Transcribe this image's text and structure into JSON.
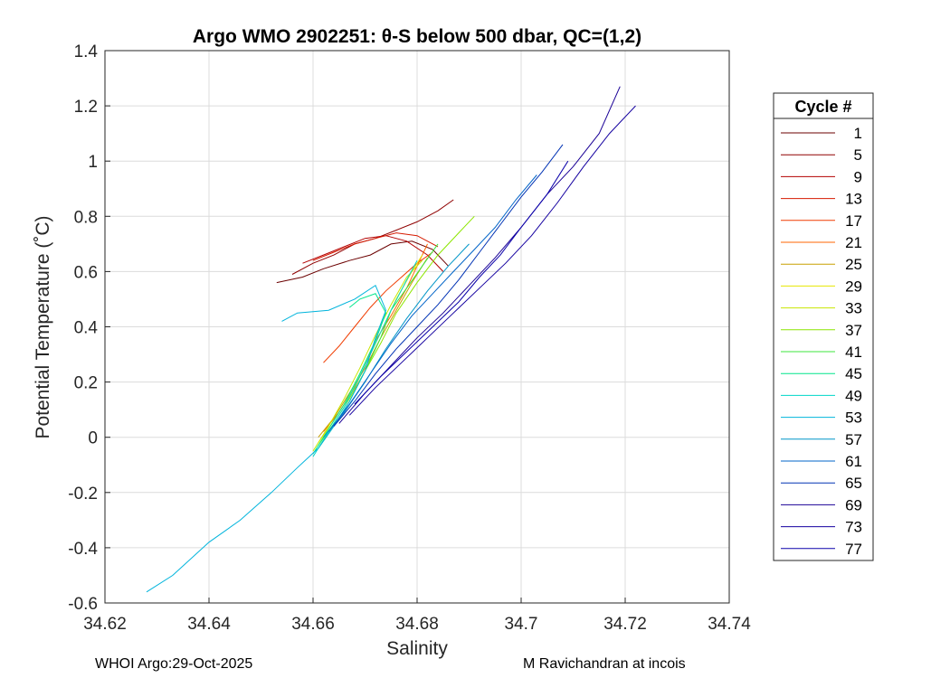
{
  "chart_data": {
    "type": "line",
    "title": "Argo WMO 2902251: θ-S below 500 dbar,  QC=(1,2)",
    "xlabel": "Salinity",
    "ylabel": "Potential Temperature (˚C)",
    "xlim": [
      34.62,
      34.74
    ],
    "ylim": [
      -0.6,
      1.4
    ],
    "xticks": [
      "34.62",
      "34.64",
      "34.66",
      "34.68",
      "34.7",
      "34.72",
      "34.74"
    ],
    "yticks": [
      "-0.6",
      "-0.4",
      "-0.2",
      "0",
      "0.2",
      "0.4",
      "0.6",
      "0.8",
      "1",
      "1.2",
      "1.4"
    ],
    "grid": true,
    "legend_title": "Cycle #",
    "legend_position": "right outside",
    "series": [
      {
        "name": "1",
        "color": "#6b0000",
        "x": [
          34.653,
          34.658,
          34.662,
          34.667,
          34.671,
          34.675,
          34.679,
          34.683,
          34.686
        ],
        "y": [
          0.56,
          0.58,
          0.61,
          0.64,
          0.66,
          0.7,
          0.71,
          0.68,
          0.62
        ]
      },
      {
        "name": "5",
        "color": "#8f0000",
        "x": [
          34.656,
          34.66,
          34.664,
          34.668,
          34.672,
          34.676,
          34.68,
          34.684,
          34.687
        ],
        "y": [
          0.59,
          0.63,
          0.66,
          0.7,
          0.72,
          0.75,
          0.78,
          0.82,
          0.86
        ]
      },
      {
        "name": "9",
        "color": "#b30000",
        "x": [
          34.658,
          34.662,
          34.666,
          34.67,
          34.674,
          34.678,
          34.682,
          34.685
        ],
        "y": [
          0.63,
          0.66,
          0.69,
          0.72,
          0.73,
          0.71,
          0.66,
          0.6
        ]
      },
      {
        "name": "13",
        "color": "#d61a00",
        "x": [
          34.66,
          34.664,
          34.668,
          34.672,
          34.676,
          34.68,
          34.684
        ],
        "y": [
          0.64,
          0.67,
          0.7,
          0.72,
          0.74,
          0.73,
          0.69
        ]
      },
      {
        "name": "17",
        "color": "#f03c00",
        "x": [
          34.662,
          34.665,
          34.668,
          34.671,
          34.674,
          34.677,
          34.68,
          34.683
        ],
        "y": [
          0.27,
          0.33,
          0.4,
          0.47,
          0.53,
          0.58,
          0.63,
          0.67
        ]
      },
      {
        "name": "21",
        "color": "#ff6600",
        "x": [
          34.662,
          34.665,
          34.668,
          34.67,
          34.672,
          34.675,
          34.678,
          34.68,
          34.682
        ],
        "y": [
          0.02,
          0.09,
          0.18,
          0.26,
          0.35,
          0.44,
          0.54,
          0.62,
          0.7
        ]
      },
      {
        "name": "25",
        "color": "#c8a000",
        "x": [
          34.661,
          34.664,
          34.667,
          34.67,
          34.673,
          34.676,
          34.679,
          34.682
        ],
        "y": [
          0.0,
          0.07,
          0.16,
          0.25,
          0.36,
          0.46,
          0.56,
          0.65
        ]
      },
      {
        "name": "29",
        "color": "#e6e600",
        "x": [
          34.661,
          34.664,
          34.667,
          34.67,
          34.673,
          34.676,
          34.679,
          34.681
        ],
        "y": [
          -0.02,
          0.06,
          0.15,
          0.26,
          0.38,
          0.5,
          0.6,
          0.66
        ]
      },
      {
        "name": "33",
        "color": "#c8e600",
        "x": [
          34.66,
          34.663,
          34.666,
          34.669,
          34.672,
          34.675,
          34.678,
          34.681
        ],
        "y": [
          -0.05,
          0.04,
          0.14,
          0.25,
          0.37,
          0.48,
          0.58,
          0.64
        ]
      },
      {
        "name": "37",
        "color": "#8ce600",
        "x": [
          34.661,
          34.664,
          34.667,
          34.67,
          34.673,
          34.676,
          34.68,
          34.684,
          34.688,
          34.691
        ],
        "y": [
          -0.03,
          0.05,
          0.14,
          0.24,
          0.34,
          0.45,
          0.56,
          0.66,
          0.74,
          0.8
        ]
      },
      {
        "name": "41",
        "color": "#3ce63c",
        "x": [
          34.661,
          34.664,
          34.667,
          34.67,
          34.673,
          34.675,
          34.678,
          34.681,
          34.684
        ],
        "y": [
          -0.04,
          0.04,
          0.13,
          0.24,
          0.36,
          0.46,
          0.54,
          0.62,
          0.7
        ]
      },
      {
        "name": "45",
        "color": "#00e68c",
        "x": [
          34.66,
          34.663,
          34.666,
          34.669,
          34.672,
          34.674,
          34.672,
          34.669,
          34.667
        ],
        "y": [
          -0.06,
          0.03,
          0.12,
          0.23,
          0.35,
          0.45,
          0.52,
          0.5,
          0.47
        ]
      },
      {
        "name": "49",
        "color": "#00d6c8",
        "x": [
          34.66,
          34.663,
          34.666,
          34.669,
          34.672,
          34.675,
          34.678,
          34.68
        ],
        "y": [
          -0.07,
          0.02,
          0.11,
          0.22,
          0.34,
          0.46,
          0.57,
          0.64
        ]
      },
      {
        "name": "53",
        "color": "#00b4dc",
        "x": [
          34.628,
          34.633,
          34.64,
          34.646,
          34.652,
          34.657,
          34.661,
          34.664,
          34.667,
          34.67,
          34.672,
          34.674,
          34.672,
          34.668,
          34.663,
          34.657,
          34.654
        ],
        "y": [
          -0.56,
          -0.5,
          -0.38,
          -0.3,
          -0.2,
          -0.11,
          -0.04,
          0.04,
          0.13,
          0.24,
          0.36,
          0.46,
          0.55,
          0.5,
          0.46,
          0.45,
          0.42
        ]
      },
      {
        "name": "57",
        "color": "#0096c8",
        "x": [
          34.662,
          34.666,
          34.67,
          34.674,
          34.678,
          34.682,
          34.686,
          34.69
        ],
        "y": [
          0.0,
          0.09,
          0.2,
          0.32,
          0.43,
          0.53,
          0.62,
          0.7
        ]
      },
      {
        "name": "61",
        "color": "#0064c8",
        "x": [
          34.663,
          34.667,
          34.671,
          34.675,
          34.679,
          34.683,
          34.687,
          34.691,
          34.695,
          34.699,
          34.703
        ],
        "y": [
          0.02,
          0.12,
          0.23,
          0.34,
          0.44,
          0.52,
          0.6,
          0.68,
          0.76,
          0.86,
          0.95
        ]
      },
      {
        "name": "65",
        "color": "#0032b4",
        "x": [
          34.664,
          34.668,
          34.672,
          34.676,
          34.68,
          34.684,
          34.688,
          34.692,
          34.696,
          34.7,
          34.704,
          34.708
        ],
        "y": [
          0.04,
          0.13,
          0.23,
          0.32,
          0.4,
          0.48,
          0.57,
          0.67,
          0.77,
          0.87,
          0.96,
          1.06
        ]
      },
      {
        "name": "69",
        "color": "#1a0096",
        "x": [
          34.665,
          34.67,
          34.675,
          34.68,
          34.685,
          34.69,
          34.695,
          34.7,
          34.705,
          34.71,
          34.715,
          34.719
        ],
        "y": [
          0.05,
          0.16,
          0.26,
          0.36,
          0.45,
          0.55,
          0.65,
          0.76,
          0.88,
          0.98,
          1.1,
          1.27
        ]
      },
      {
        "name": "73",
        "color": "#1400a0",
        "x": [
          34.667,
          34.672,
          34.677,
          34.682,
          34.687,
          34.692,
          34.697,
          34.702,
          34.707,
          34.712,
          34.717,
          34.722
        ],
        "y": [
          0.08,
          0.18,
          0.27,
          0.36,
          0.45,
          0.54,
          0.63,
          0.73,
          0.85,
          0.98,
          1.1,
          1.2
        ]
      },
      {
        "name": "77",
        "color": "#0a00aa",
        "x": [
          34.668,
          34.673,
          34.678,
          34.683,
          34.688,
          34.692,
          34.696,
          34.7,
          34.705,
          34.709
        ],
        "y": [
          0.12,
          0.22,
          0.31,
          0.4,
          0.49,
          0.58,
          0.66,
          0.76,
          0.88,
          1.0
        ]
      }
    ]
  },
  "footer": {
    "left": "WHOI Argo:29-Oct-2025",
    "right": "M Ravichandran at incois"
  }
}
